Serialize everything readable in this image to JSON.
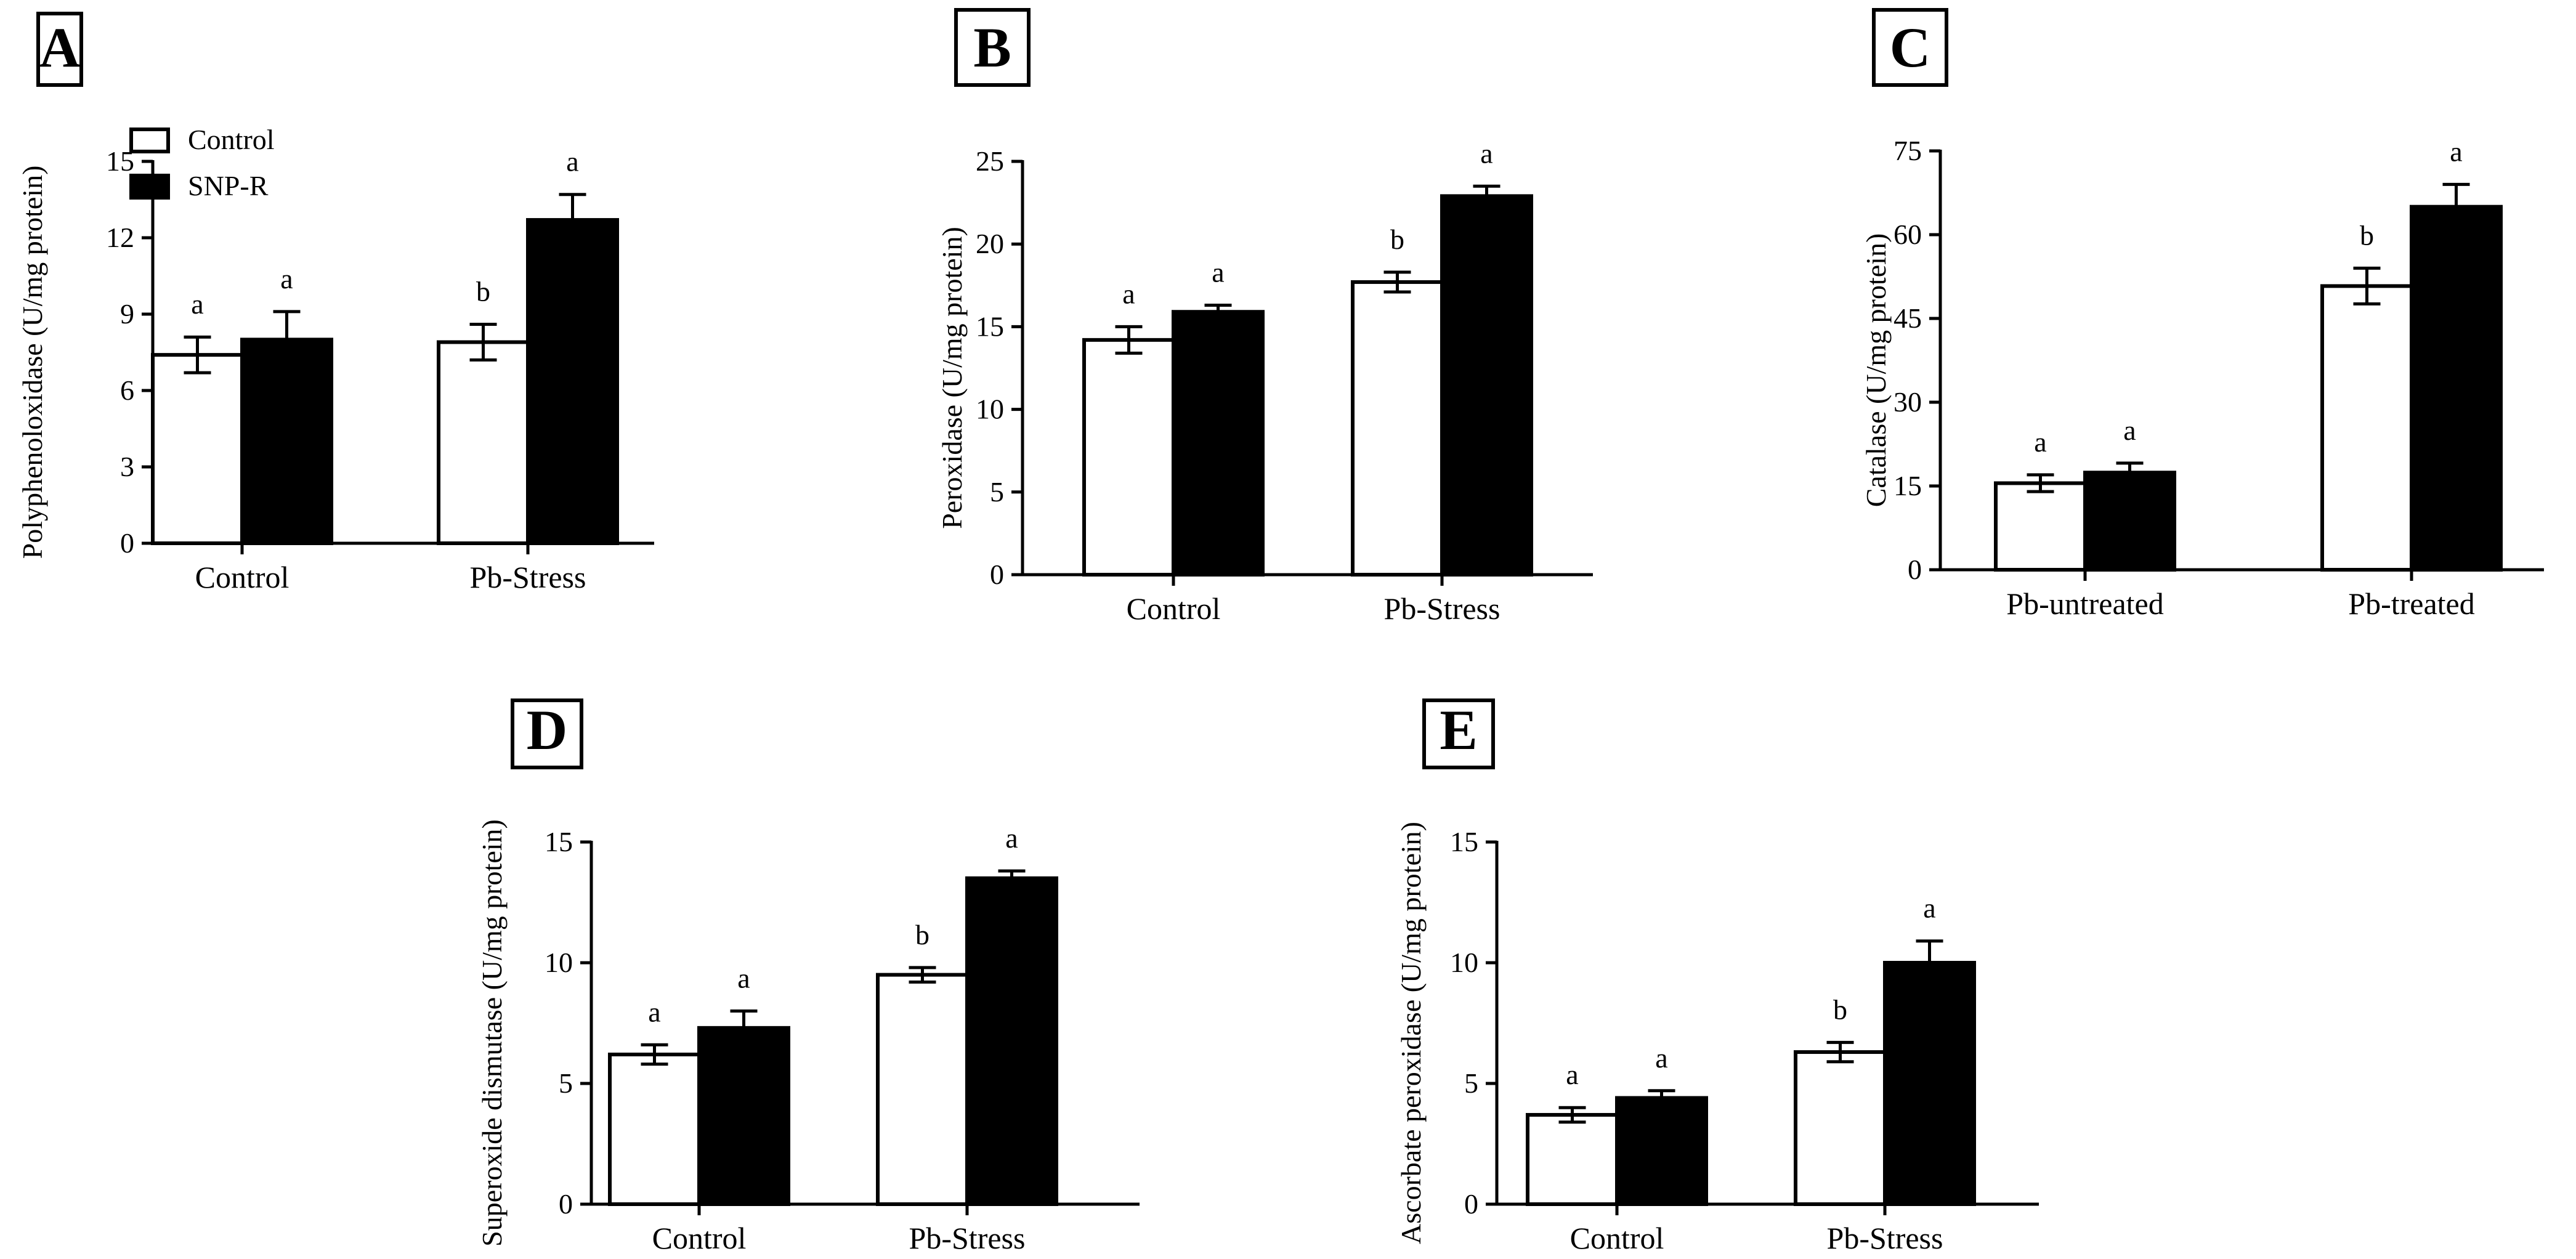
{
  "legend": {
    "entries": [
      {
        "label": "Control",
        "color": "#ffffff"
      },
      {
        "label": "SNP-R",
        "color": "#000000"
      }
    ]
  },
  "colors": {
    "control": "#ffffff",
    "snp": "#000000",
    "stroke": "#000000"
  },
  "chart_data": [
    {
      "panel": "A",
      "type": "bar",
      "ylabel": "Polyphenoloxidase (U/mg protein)",
      "ylim": [
        0,
        15
      ],
      "yticks": [
        0,
        3,
        6,
        9,
        12,
        15
      ],
      "categories": [
        "Control",
        "Pb-Stress"
      ],
      "series": [
        {
          "name": "Control",
          "values": [
            7.4,
            7.9
          ],
          "errors": [
            0.7,
            0.7
          ],
          "letters": [
            "a",
            "b"
          ]
        },
        {
          "name": "SNP-R",
          "values": [
            8.0,
            12.7
          ],
          "errors": [
            1.1,
            1.0
          ],
          "letters": [
            "a",
            "a"
          ]
        }
      ]
    },
    {
      "panel": "B",
      "type": "bar",
      "ylabel": "Peroxidase (U/mg protein)",
      "ylim": [
        0,
        25
      ],
      "yticks": [
        0,
        5,
        10,
        15,
        20,
        25
      ],
      "categories": [
        "Control",
        "Pb-Stress"
      ],
      "series": [
        {
          "name": "Control",
          "values": [
            14.2,
            17.7
          ],
          "errors": [
            0.8,
            0.6
          ],
          "letters": [
            "a",
            "b"
          ]
        },
        {
          "name": "SNP-R",
          "values": [
            15.9,
            22.9
          ],
          "errors": [
            0.4,
            0.6
          ],
          "letters": [
            "a",
            "a"
          ]
        }
      ]
    },
    {
      "panel": "C",
      "type": "bar",
      "ylabel": "Catalase (U/mg protein)",
      "ylim": [
        0,
        75
      ],
      "yticks": [
        0,
        15,
        30,
        45,
        60,
        75
      ],
      "categories": [
        "Pb-untreated",
        "Pb-treated"
      ],
      "series": [
        {
          "name": "Control",
          "values": [
            15.5,
            50.8
          ],
          "errors": [
            1.5,
            3.2
          ],
          "letters": [
            "a",
            "b"
          ]
        },
        {
          "name": "SNP-R",
          "values": [
            17.4,
            65.0
          ],
          "errors": [
            1.7,
            4.0
          ],
          "letters": [
            "a",
            "a"
          ]
        }
      ]
    },
    {
      "panel": "D",
      "type": "bar",
      "ylabel": "Superoxide dismutase (U/mg protein)",
      "ylim": [
        0,
        15
      ],
      "yticks": [
        0,
        5,
        10,
        15
      ],
      "categories": [
        "Control",
        "Pb-Stress"
      ],
      "series": [
        {
          "name": "Control",
          "values": [
            6.2,
            9.5
          ],
          "errors": [
            0.4,
            0.3
          ],
          "letters": [
            "a",
            "b"
          ]
        },
        {
          "name": "SNP-R",
          "values": [
            7.3,
            13.5
          ],
          "errors": [
            0.7,
            0.3
          ],
          "letters": [
            "a",
            "a"
          ]
        }
      ]
    },
    {
      "panel": "E",
      "type": "bar",
      "ylabel": "Ascorbate peroxidase (U/mg protein)",
      "ylim": [
        0,
        15
      ],
      "yticks": [
        0,
        5,
        10,
        15
      ],
      "categories": [
        "Control",
        "Pb-Stress"
      ],
      "series": [
        {
          "name": "Control",
          "values": [
            3.7,
            6.3
          ],
          "errors": [
            0.3,
            0.4
          ],
          "letters": [
            "a",
            "b"
          ]
        },
        {
          "name": "SNP-R",
          "values": [
            4.4,
            10.0
          ],
          "errors": [
            0.3,
            0.9
          ],
          "letters": [
            "a",
            "a"
          ]
        }
      ]
    }
  ]
}
